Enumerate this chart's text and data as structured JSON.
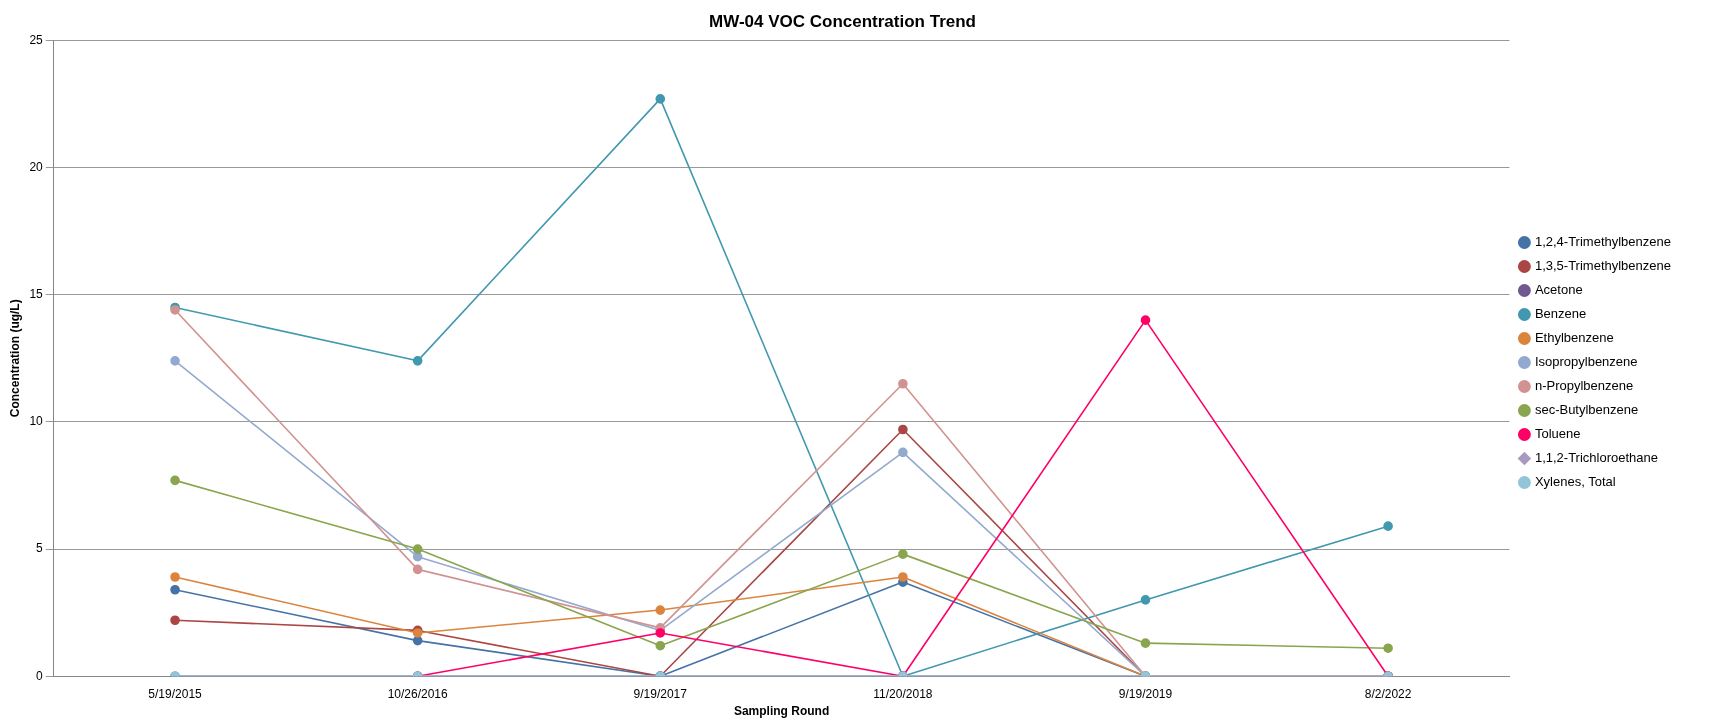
{
  "chart_data": {
    "type": "line",
    "title": "MW-04 VOC Concentration Trend",
    "xlabel": "Sampling Round",
    "ylabel": "Concentration (ug/L)",
    "categories": [
      "5/19/2015",
      "10/26/2016",
      "9/19/2017",
      "11/20/2018",
      "9/19/2019",
      "8/2/2022"
    ],
    "series": [
      {
        "name": "1,2,4-Trimethylbenzene",
        "color": "#4572a7",
        "values": [
          3.4,
          1.4,
          0,
          3.7,
          0,
          0
        ]
      },
      {
        "name": "1,3,5-Trimethylbenzene",
        "color": "#aa4643",
        "values": [
          2.2,
          1.8,
          0,
          9.7,
          0,
          0
        ]
      },
      {
        "name": "Acetone",
        "color": "#71588f",
        "values": [
          0,
          0,
          0,
          0,
          0,
          0
        ]
      },
      {
        "name": "Benzene",
        "color": "#4198af",
        "values": [
          14.5,
          12.4,
          22.7,
          0,
          3.0,
          5.9
        ]
      },
      {
        "name": "Ethylbenzene",
        "color": "#db843d",
        "values": [
          3.9,
          1.7,
          2.6,
          3.9,
          0,
          0
        ]
      },
      {
        "name": "Isopropylbenzene",
        "color": "#93a9cf",
        "values": [
          12.4,
          4.7,
          1.8,
          8.8,
          0,
          0
        ]
      },
      {
        "name": "n-Propylbenzene",
        "color": "#d19392",
        "values": [
          14.4,
          4.2,
          1.9,
          11.5,
          0,
          0
        ]
      },
      {
        "name": "sec-Butylbenzene",
        "color": "#89a54e",
        "values": [
          7.7,
          5.0,
          1.2,
          4.8,
          1.3,
          1.1
        ]
      },
      {
        "name": "Toluene",
        "color": "#ff0066",
        "values": [
          null,
          0,
          1.7,
          0,
          14.0,
          0
        ]
      },
      {
        "name": "1,1,2-Trichloroethane",
        "color": "#a99bbd",
        "marker": "diamond",
        "values": [
          0,
          0,
          0,
          0,
          0,
          0
        ]
      },
      {
        "name": "Xylenes, Total",
        "color": "#92c5d8",
        "values": [
          0,
          0,
          0,
          0,
          0,
          0
        ]
      }
    ],
    "ylim": [
      0,
      25
    ],
    "yticks": [
      0,
      5,
      10,
      15,
      20,
      25
    ],
    "grid": "y",
    "legend": "right",
    "marker": "circle",
    "line_style": "solid"
  }
}
